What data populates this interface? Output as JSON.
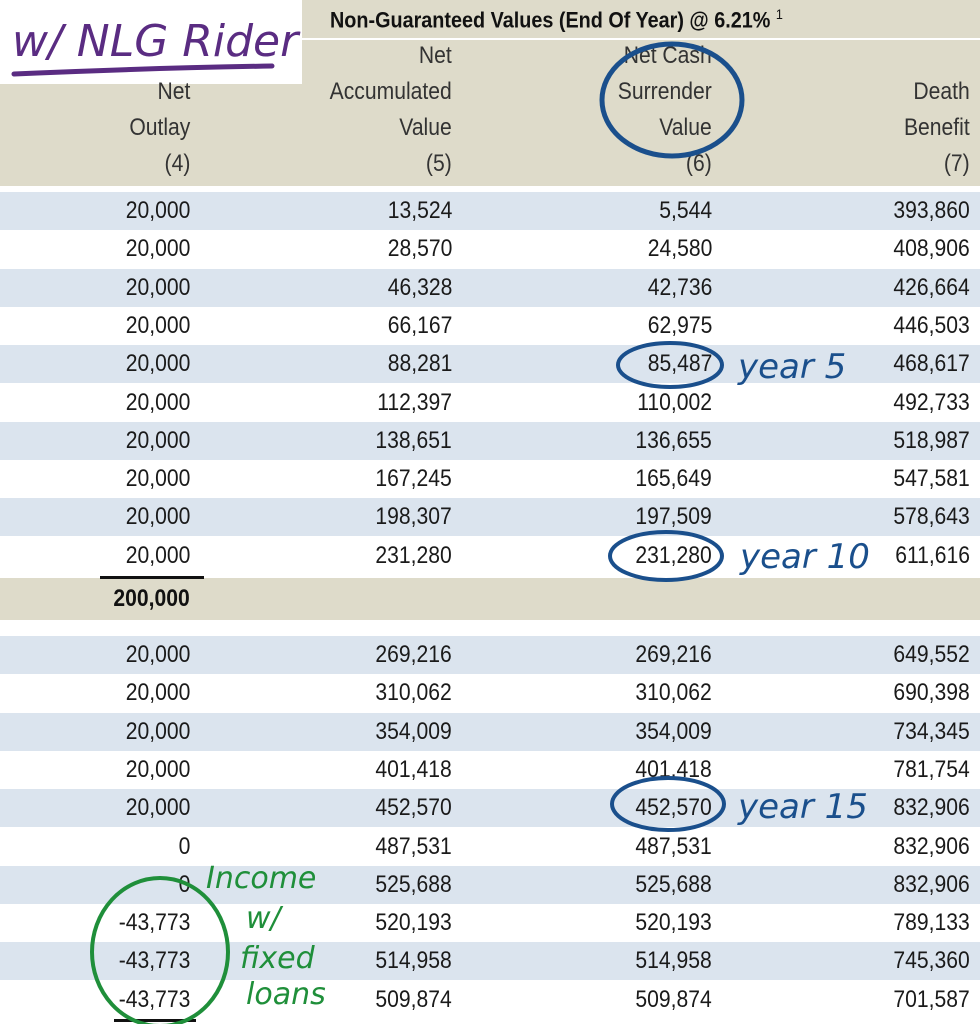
{
  "table": {
    "title": "Non-Guaranteed Values (End Of Year) @ 6.21%",
    "footnote": "1",
    "columns": [
      {
        "lines": [
          "Net",
          "Outlay",
          "(4)"
        ]
      },
      {
        "lines": [
          "Net",
          "Accumulated",
          "Value",
          "(5)"
        ]
      },
      {
        "lines": [
          "Net Cash",
          "Surrender",
          "Value",
          "(6)"
        ]
      },
      {
        "lines": [
          "Death",
          "Benefit",
          "(7)"
        ]
      }
    ],
    "group1": [
      [
        "20,000",
        "13,524",
        "5,544",
        "393,860"
      ],
      [
        "20,000",
        "28,570",
        "24,580",
        "408,906"
      ],
      [
        "20,000",
        "46,328",
        "42,736",
        "426,664"
      ],
      [
        "20,000",
        "66,167",
        "62,975",
        "446,503"
      ],
      [
        "20,000",
        "88,281",
        "85,487",
        "468,617"
      ],
      [
        "20,000",
        "112,397",
        "110,002",
        "492,733"
      ],
      [
        "20,000",
        "138,651",
        "136,655",
        "518,987"
      ],
      [
        "20,000",
        "167,245",
        "165,649",
        "547,581"
      ],
      [
        "20,000",
        "198,307",
        "197,509",
        "578,643"
      ],
      [
        "20,000",
        "231,280",
        "231,280",
        "611,616"
      ]
    ],
    "subtotal": "200,000",
    "group2": [
      [
        "20,000",
        "269,216",
        "269,216",
        "649,552"
      ],
      [
        "20,000",
        "310,062",
        "310,062",
        "690,398"
      ],
      [
        "20,000",
        "354,009",
        "354,009",
        "734,345"
      ],
      [
        "20,000",
        "401,418",
        "401,418",
        "781,754"
      ],
      [
        "20,000",
        "452,570",
        "452,570",
        "832,906"
      ],
      [
        "0",
        "487,531",
        "487,531",
        "832,906"
      ],
      [
        "0",
        "525,688",
        "525,688",
        "832,906"
      ],
      [
        "-43,773",
        "520,193",
        "520,193",
        "789,133"
      ],
      [
        "-43,773",
        "514,958",
        "514,958",
        "745,360"
      ],
      [
        "-43,773",
        "509,874",
        "509,874",
        "701,587"
      ]
    ]
  },
  "annotations": {
    "rider_note": "w/ NLG Rider",
    "year5": "year 5",
    "year10": "year 10",
    "year15": "year 15",
    "income_note": [
      "Income",
      "w/",
      "fixed",
      "loans"
    ]
  },
  "colors": {
    "header_band": "#dedbca",
    "row_alt": "#dbe4ee",
    "ink_purple": "#5a2c82",
    "ink_blue": "#1a4f8c",
    "ink_green": "#1f8f3a"
  }
}
